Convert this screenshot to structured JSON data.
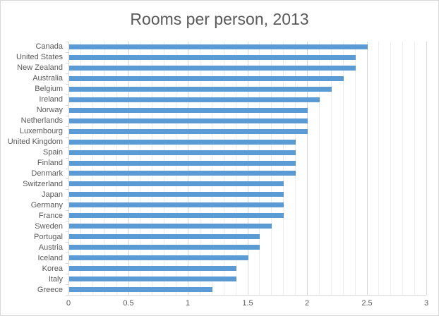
{
  "title": "Rooms per person, 2013",
  "chart_data": {
    "type": "bar",
    "orientation": "horizontal",
    "title": "Rooms per person, 2013",
    "categories": [
      "Canada",
      "United States",
      "New Zealand",
      "Australia",
      "Belgium",
      "Ireland",
      "Norway",
      "Netherlands",
      "Luxembourg",
      "United Kingdom",
      "Spain",
      "Finland",
      "Denmark",
      "Switzerland",
      "Japan",
      "Germany",
      "France",
      "Sweden",
      "Portugal",
      "Austria",
      "Iceland",
      "Korea",
      "Italy",
      "Greece"
    ],
    "values": [
      2.5,
      2.4,
      2.4,
      2.3,
      2.2,
      2.1,
      2.0,
      2.0,
      2.0,
      1.9,
      1.9,
      1.9,
      1.9,
      1.8,
      1.8,
      1.8,
      1.8,
      1.7,
      1.6,
      1.6,
      1.5,
      1.4,
      1.4,
      1.2
    ],
    "xlabel": "",
    "ylabel": "",
    "xlim": [
      0,
      3
    ],
    "x_tick_values": [
      0,
      0.5,
      1,
      1.5,
      2,
      2.5,
      3
    ],
    "x_tick_labels": [
      "0",
      "0.5",
      "1",
      "1.5",
      "2",
      "2.5",
      "3"
    ],
    "x_major_step": 0.5,
    "x_minor_step": 0.1,
    "grid": "vertical-minor-and-major",
    "legend": "none",
    "colors": {
      "bar": "#5b9bd5",
      "gridline_minor": "#ededed",
      "gridline_major": "#d9d9d9",
      "axis_line": "#d9d9d9",
      "text": "#595959",
      "frame_border": "#d7d7d7",
      "background": "#ffffff"
    }
  }
}
